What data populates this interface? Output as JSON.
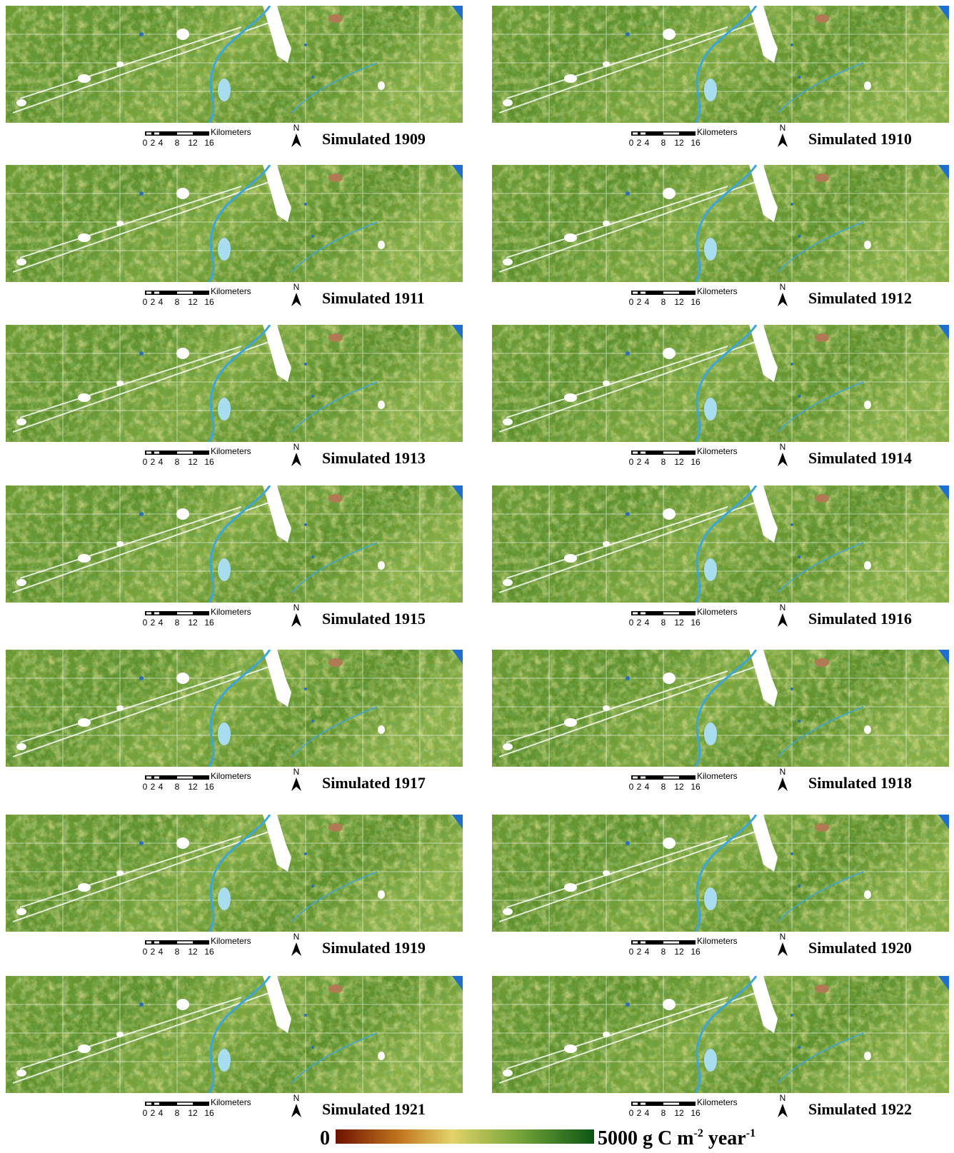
{
  "panels": [
    {
      "title": "Simulated 1909"
    },
    {
      "title": "Simulated 1910"
    },
    {
      "title": "Simulated 1911"
    },
    {
      "title": "Simulated 1912"
    },
    {
      "title": "Simulated 1913"
    },
    {
      "title": "Simulated 1914"
    },
    {
      "title": "Simulated 1915"
    },
    {
      "title": "Simulated 1916"
    },
    {
      "title": "Simulated 1917"
    },
    {
      "title": "Simulated 1918"
    },
    {
      "title": "Simulated 1919"
    },
    {
      "title": "Simulated 1920"
    },
    {
      "title": "Simulated 1921"
    },
    {
      "title": "Simulated 1922"
    }
  ],
  "scale_bar": {
    "unit": "Kilometers",
    "ticks": [
      "0",
      "2",
      "4",
      "8",
      "12",
      "16"
    ]
  },
  "north": "N",
  "legend": {
    "min": "0",
    "max": "5000 g C m",
    "exp1": "-2",
    "unit2": " year",
    "exp2": "-1"
  }
}
